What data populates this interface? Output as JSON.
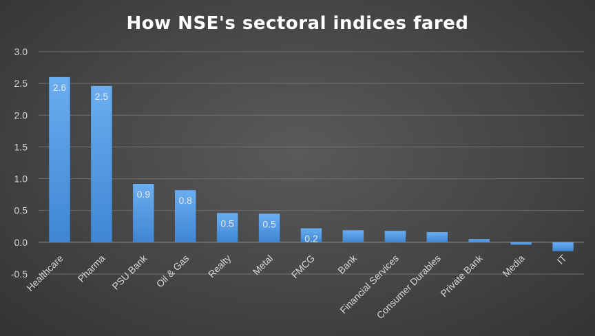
{
  "chart_data": {
    "type": "bar",
    "title": "How NSE's sectoral indices fared",
    "xlabel": "",
    "ylabel": "",
    "categories": [
      "Healthcare",
      "Pharma",
      "PSU Bank",
      "Oil & Gas",
      "Realty",
      "Metal",
      "FMCG",
      "Bank",
      "Financial Services",
      "Consumer Durables",
      "Private Bank",
      "Media",
      "IT"
    ],
    "values": [
      2.6,
      2.46,
      0.92,
      0.82,
      0.46,
      0.45,
      0.22,
      0.19,
      0.18,
      0.16,
      0.05,
      -0.04,
      -0.14
    ],
    "data_labels": [
      "2.6",
      "2.5",
      "0.9",
      "0.8",
      "0.5",
      "0.5",
      "0.2",
      "",
      "",
      "",
      "",
      "",
      ""
    ],
    "ylim": [
      -0.5,
      3.0
    ],
    "yticks": [
      "3.0",
      "2.5",
      "2.0",
      "1.5",
      "1.0",
      "0.5",
      "0.0",
      "-0.5"
    ],
    "ytick_values": [
      3.0,
      2.5,
      2.0,
      1.5,
      1.0,
      0.5,
      0.0,
      -0.5
    ],
    "grid": true,
    "legend": "none",
    "colors": {
      "bar_top": "#6aaef0",
      "bar_bottom": "#3f86d3",
      "background": "#454545"
    }
  }
}
